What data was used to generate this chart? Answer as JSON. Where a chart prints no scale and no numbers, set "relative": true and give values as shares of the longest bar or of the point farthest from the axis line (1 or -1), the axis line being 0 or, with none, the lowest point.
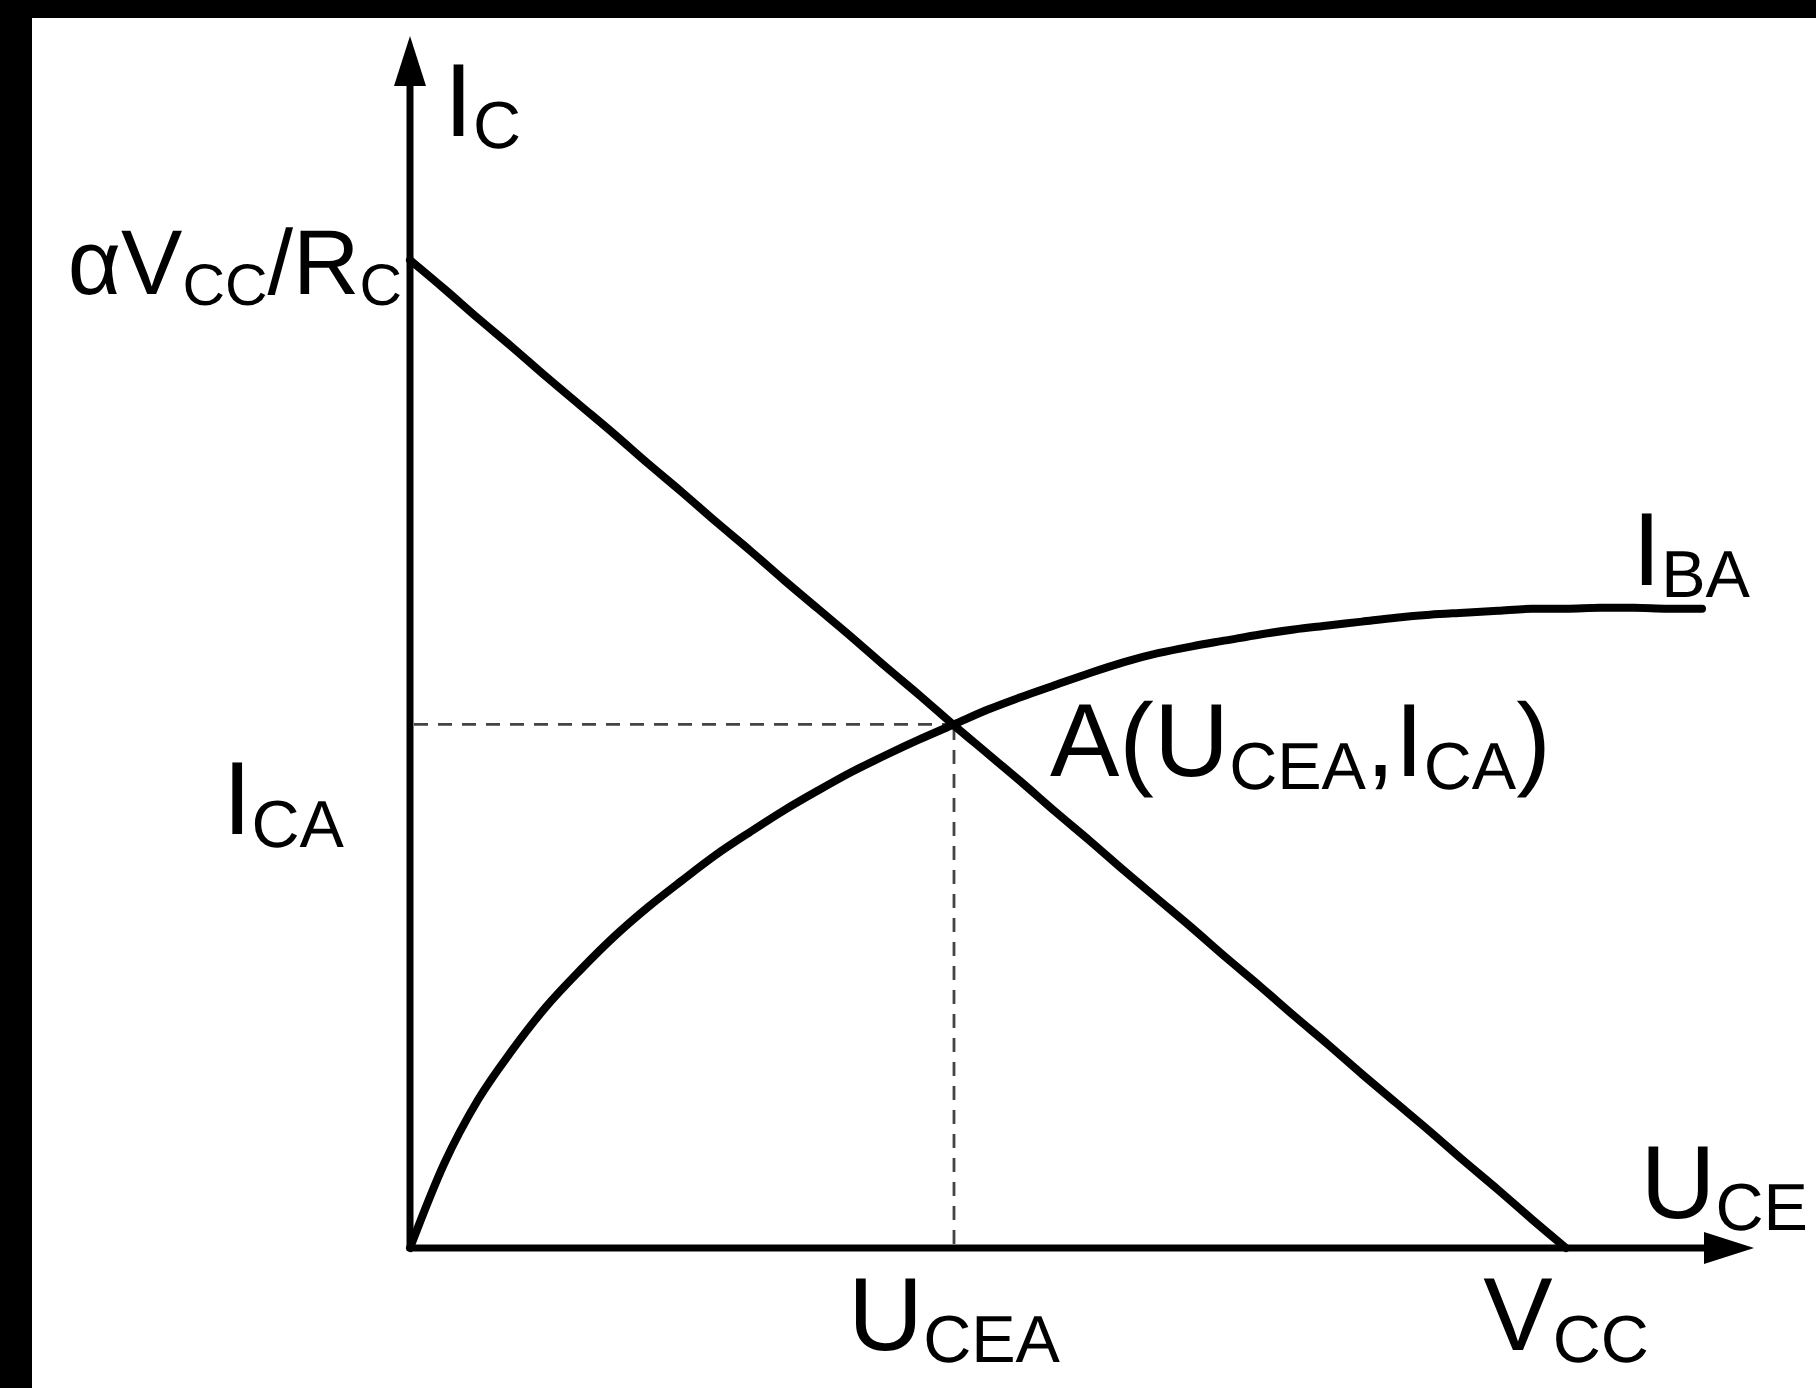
{
  "chart_data": {
    "type": "line",
    "relative": true,
    "xlabel": "U$_{CE}$",
    "ylabel": "I$_{C}$",
    "categories": [
      null,
      null,
      null,
      null,
      null,
      null,
      null,
      null,
      null,
      null,
      null,
      null,
      null,
      null,
      null,
      null,
      "U$_{CEA}$",
      null,
      null,
      null,
      null,
      null,
      null,
      null,
      null,
      null,
      null,
      null,
      null,
      null,
      null,
      null,
      null,
      null,
      "V$_{CC}$",
      null,
      null,
      null,
      null
    ],
    "series": [
      {
        "color": "#000000",
        "values": [
          1,
          0.971,
          0.941,
          0.912,
          0.882,
          0.853,
          0.824,
          0.794,
          0.765,
          0.735,
          0.706,
          0.676,
          0.647,
          0.618,
          0.588,
          0.559,
          0.529,
          0.5,
          0.471,
          0.441,
          0.412,
          0.382,
          0.353,
          0.324,
          0.294,
          0.265,
          0.235,
          0.206,
          0.176,
          0.147,
          0.118,
          0.088,
          0.059,
          0.029,
          0,
          null,
          null,
          null,
          null
        ]
      },
      {
        "name": "I$_{BA}$",
        "color": "#000000",
        "values": [
          0,
          0.085,
          0.15,
          0.2,
          0.244,
          0.281,
          0.315,
          0.345,
          0.372,
          0.398,
          0.421,
          0.443,
          0.463,
          0.482,
          0.499,
          0.515,
          0.53,
          0.545,
          0.558,
          0.57,
          0.582,
          0.593,
          0.602,
          0.609,
          0.615,
          0.621,
          0.626,
          0.63,
          0.634,
          0.638,
          0.641,
          0.643,
          0.645,
          0.647,
          0.647,
          0.648,
          0.648,
          0.647,
          0.647
        ]
      }
    ],
    "ref_lines": [
      {
        "axis": "y",
        "value": 0.53,
        "label": "I$_{CA}$",
        "line_style": "dashed"
      },
      {
        "axis": "x",
        "value": "U$_{CEA}$",
        "line_style": "dashed"
      }
    ],
    "annotations": [
      "αV$_{CC}$/R$_{C}$",
      {
        "text": "A(U$_{CEA}$,I$_{CA}$)",
        "x": "U$_{CEA}$",
        "y": 0.53
      }
    ]
  }
}
